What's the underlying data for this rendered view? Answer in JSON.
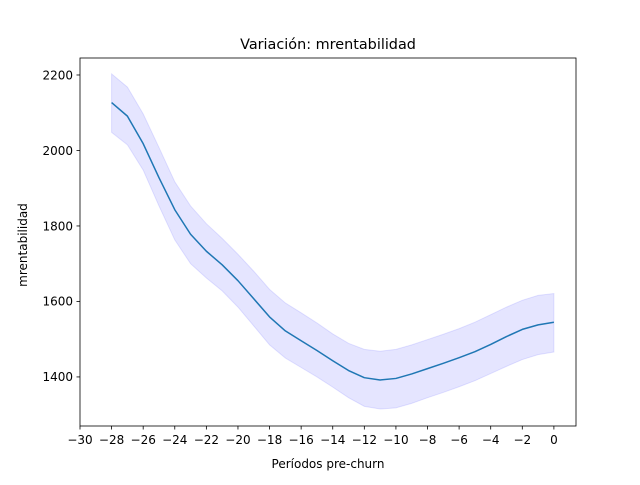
{
  "chart_data": {
    "type": "line",
    "title": "Variación: mrentabilidad",
    "xlabel": "Períodos pre-churn",
    "ylabel": "mrentabilidad",
    "xlim": [
      -30,
      1.4
    ],
    "ylim": [
      1270,
      2245
    ],
    "xticks": [
      -30,
      -28,
      -26,
      -24,
      -22,
      -20,
      -18,
      -16,
      -14,
      -12,
      -10,
      -8,
      -6,
      -4,
      -2,
      0
    ],
    "xtick_labels": [
      "−30",
      "−28",
      "−26",
      "−24",
      "−22",
      "−20",
      "−18",
      "−16",
      "−14",
      "−12",
      "−10",
      "−8",
      "−6",
      "−4",
      "−2",
      "0"
    ],
    "yticks": [
      1400,
      1600,
      1800,
      2000,
      2200
    ],
    "ytick_labels": [
      "1400",
      "1600",
      "1800",
      "2000",
      "2200"
    ],
    "grid": false,
    "legend": "none",
    "colors": {
      "line": "#1f77b4",
      "band": "#0000ff"
    },
    "series": [
      {
        "x": [
          -28,
          -27,
          -26,
          -25,
          -24,
          -23,
          -22,
          -21,
          -20,
          -19,
          -18,
          -17,
          -16,
          -15,
          -14,
          -13,
          -12,
          -11,
          -10,
          -9,
          -8,
          -7,
          -6,
          -5,
          -4,
          -3,
          -2,
          -1,
          0
        ],
        "y": [
          2127,
          2091,
          2018,
          1928,
          1843,
          1778,
          1733,
          1697,
          1655,
          1607,
          1559,
          1522,
          1496,
          1470,
          1443,
          1417,
          1398,
          1392,
          1396,
          1408,
          1422,
          1436,
          1451,
          1467,
          1486,
          1507,
          1526,
          1538,
          1545
        ],
        "lower": [
          2048,
          2015,
          1948,
          1853,
          1763,
          1700,
          1662,
          1628,
          1585,
          1535,
          1485,
          1450,
          1425,
          1400,
          1373,
          1345,
          1322,
          1315,
          1318,
          1330,
          1345,
          1359,
          1374,
          1390,
          1409,
          1428,
          1446,
          1459,
          1466
        ],
        "upper": [
          2203,
          2168,
          2097,
          2008,
          1917,
          1853,
          1806,
          1767,
          1725,
          1680,
          1632,
          1596,
          1570,
          1543,
          1514,
          1489,
          1473,
          1468,
          1473,
          1485,
          1499,
          1513,
          1528,
          1545,
          1565,
          1585,
          1603,
          1616,
          1621
        ]
      }
    ]
  }
}
